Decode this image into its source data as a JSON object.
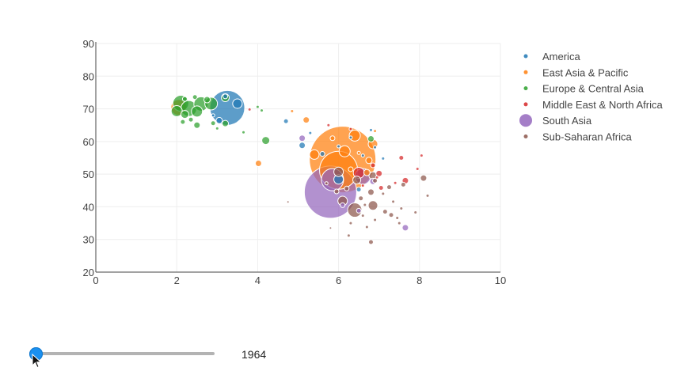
{
  "chart_data": {
    "type": "scatter",
    "variant": "bubble",
    "title": "",
    "xlabel": "",
    "ylabel": "",
    "xlim": [
      0,
      10
    ],
    "ylim": [
      20,
      90
    ],
    "x_ticks": [
      "0",
      "2",
      "4",
      "6",
      "8",
      "10"
    ],
    "y_ticks": [
      "20",
      "30",
      "40",
      "50",
      "60",
      "70",
      "80",
      "90"
    ],
    "grid": true,
    "legend_position": "right",
    "legend": [
      {
        "name": "America",
        "color": "#1f77b4"
      },
      {
        "name": "East Asia & Pacific",
        "color": "#ff7f0e"
      },
      {
        "name": "Europe & Central Asia",
        "color": "#2ca02c"
      },
      {
        "name": "Middle East & North Africa",
        "color": "#d62728"
      },
      {
        "name": "South Asia",
        "color": "#9467bd"
      },
      {
        "name": "Sub-Saharan Africa",
        "color": "#8c564b"
      }
    ],
    "series": [
      {
        "name": "America",
        "color": "#1f77b4",
        "points": [
          {
            "x": 3.25,
            "y": 70.3,
            "s": 22
          },
          {
            "x": 3.5,
            "y": 71.6,
            "s": 6
          },
          {
            "x": 3.05,
            "y": 66.4,
            "s": 4
          },
          {
            "x": 3.2,
            "y": 73.8,
            "s": 3
          },
          {
            "x": 2.9,
            "y": 68.0,
            "s": 2
          },
          {
            "x": 5.1,
            "y": 58.8,
            "s": 4
          },
          {
            "x": 4.7,
            "y": 66.2,
            "s": 3
          },
          {
            "x": 6.0,
            "y": 48.4,
            "s": 6
          },
          {
            "x": 6.5,
            "y": 45.3,
            "s": 3
          },
          {
            "x": 5.6,
            "y": 56.2,
            "s": 3
          },
          {
            "x": 6.8,
            "y": 63.5,
            "s": 2
          },
          {
            "x": 6.3,
            "y": 61.2,
            "s": 2
          },
          {
            "x": 6.0,
            "y": 58.5,
            "s": 2
          },
          {
            "x": 7.1,
            "y": 54.8,
            "s": 2
          },
          {
            "x": 6.6,
            "y": 55.7,
            "s": 2
          },
          {
            "x": 5.3,
            "y": 62.6,
            "s": 2
          },
          {
            "x": 6.9,
            "y": 58.2,
            "s": 2
          }
        ]
      },
      {
        "name": "East Asia & Pacific",
        "color": "#ff7f0e",
        "points": [
          {
            "x": 6.1,
            "y": 54.5,
            "s": 42
          },
          {
            "x": 6.0,
            "y": 51.2,
            "s": 24
          },
          {
            "x": 2.05,
            "y": 70.4,
            "s": 10
          },
          {
            "x": 4.02,
            "y": 53.3,
            "s": 4
          },
          {
            "x": 5.2,
            "y": 66.6,
            "s": 4
          },
          {
            "x": 6.4,
            "y": 61.8,
            "s": 7
          },
          {
            "x": 6.85,
            "y": 59.2,
            "s": 6
          },
          {
            "x": 5.4,
            "y": 56.0,
            "s": 6
          },
          {
            "x": 6.15,
            "y": 57.0,
            "s": 7
          },
          {
            "x": 4.85,
            "y": 69.3,
            "s": 2
          },
          {
            "x": 6.7,
            "y": 50.5,
            "s": 4
          },
          {
            "x": 6.75,
            "y": 54.2,
            "s": 4
          },
          {
            "x": 6.3,
            "y": 51.5,
            "s": 3
          },
          {
            "x": 5.85,
            "y": 61.0,
            "s": 3
          },
          {
            "x": 6.5,
            "y": 56.5,
            "s": 2
          },
          {
            "x": 6.9,
            "y": 63.2,
            "s": 2
          }
        ]
      },
      {
        "name": "Europe & Central Asia",
        "color": "#2ca02c",
        "points": [
          {
            "x": 2.1,
            "y": 71.7,
            "s": 10
          },
          {
            "x": 2.3,
            "y": 70.1,
            "s": 10
          },
          {
            "x": 2.6,
            "y": 71.5,
            "s": 9
          },
          {
            "x": 2.85,
            "y": 71.6,
            "s": 8
          },
          {
            "x": 2.0,
            "y": 69.3,
            "s": 7
          },
          {
            "x": 2.5,
            "y": 69.2,
            "s": 7
          },
          {
            "x": 2.2,
            "y": 68.3,
            "s": 5
          },
          {
            "x": 2.75,
            "y": 72.8,
            "s": 4
          },
          {
            "x": 3.2,
            "y": 73.4,
            "s": 5
          },
          {
            "x": 3.2,
            "y": 65.5,
            "s": 4
          },
          {
            "x": 4.2,
            "y": 60.3,
            "s": 5
          },
          {
            "x": 2.5,
            "y": 65.0,
            "s": 4
          },
          {
            "x": 2.9,
            "y": 65.6,
            "s": 3
          },
          {
            "x": 2.45,
            "y": 73.6,
            "s": 3
          },
          {
            "x": 3.65,
            "y": 62.8,
            "s": 2
          },
          {
            "x": 4.0,
            "y": 70.6,
            "s": 2
          },
          {
            "x": 4.1,
            "y": 69.5,
            "s": 2
          },
          {
            "x": 6.8,
            "y": 60.8,
            "s": 4
          },
          {
            "x": 2.35,
            "y": 66.7,
            "s": 3
          },
          {
            "x": 3.0,
            "y": 64.0,
            "s": 2
          },
          {
            "x": 2.2,
            "y": 73.0,
            "s": 3
          },
          {
            "x": 2.15,
            "y": 66.0,
            "s": 3
          }
        ]
      },
      {
        "name": "Middle East & North Africa",
        "color": "#d62728",
        "points": [
          {
            "x": 6.5,
            "y": 50.4,
            "s": 7
          },
          {
            "x": 7.65,
            "y": 48.0,
            "s": 4
          },
          {
            "x": 7.0,
            "y": 50.2,
            "s": 4
          },
          {
            "x": 6.85,
            "y": 52.7,
            "s": 3
          },
          {
            "x": 7.05,
            "y": 45.8,
            "s": 3
          },
          {
            "x": 7.4,
            "y": 47.3,
            "s": 2
          },
          {
            "x": 7.55,
            "y": 55.0,
            "s": 3
          },
          {
            "x": 3.8,
            "y": 69.8,
            "s": 2
          },
          {
            "x": 5.75,
            "y": 65.0,
            "s": 2
          },
          {
            "x": 6.3,
            "y": 63.8,
            "s": 2
          },
          {
            "x": 7.95,
            "y": 51.6,
            "s": 2
          },
          {
            "x": 8.05,
            "y": 55.7,
            "s": 2
          },
          {
            "x": 6.95,
            "y": 49.0,
            "s": 2
          },
          {
            "x": 6.6,
            "y": 46.5,
            "s": 2
          }
        ]
      },
      {
        "name": "South Asia",
        "color": "#9467bd",
        "points": [
          {
            "x": 5.8,
            "y": 44.5,
            "s": 33
          },
          {
            "x": 5.85,
            "y": 48.3,
            "s": 14
          },
          {
            "x": 6.6,
            "y": 49.3,
            "s": 10
          },
          {
            "x": 7.65,
            "y": 33.6,
            "s": 4
          },
          {
            "x": 5.1,
            "y": 61.0,
            "s": 4
          },
          {
            "x": 6.5,
            "y": 38.8,
            "s": 3
          },
          {
            "x": 6.1,
            "y": 40.5,
            "s": 3
          },
          {
            "x": 6.85,
            "y": 47.8,
            "s": 4
          }
        ]
      },
      {
        "name": "Sub-Saharan Africa",
        "color": "#8c564b",
        "points": [
          {
            "x": 6.4,
            "y": 39.0,
            "s": 9
          },
          {
            "x": 6.0,
            "y": 50.7,
            "s": 6
          },
          {
            "x": 6.1,
            "y": 41.8,
            "s": 6
          },
          {
            "x": 6.85,
            "y": 40.4,
            "s": 6
          },
          {
            "x": 6.45,
            "y": 48.2,
            "s": 5
          },
          {
            "x": 6.85,
            "y": 49.5,
            "s": 5
          },
          {
            "x": 6.8,
            "y": 44.5,
            "s": 4
          },
          {
            "x": 8.1,
            "y": 48.8,
            "s": 4
          },
          {
            "x": 7.3,
            "y": 37.5,
            "s": 3
          },
          {
            "x": 7.55,
            "y": 39.5,
            "s": 2
          },
          {
            "x": 6.9,
            "y": 48.0,
            "s": 3
          },
          {
            "x": 6.8,
            "y": 29.2,
            "s": 3
          },
          {
            "x": 7.5,
            "y": 35.0,
            "s": 2
          },
          {
            "x": 7.15,
            "y": 38.5,
            "s": 3
          },
          {
            "x": 6.25,
            "y": 31.2,
            "s": 2
          },
          {
            "x": 6.7,
            "y": 33.8,
            "s": 2
          },
          {
            "x": 6.9,
            "y": 36.0,
            "s": 2
          },
          {
            "x": 7.25,
            "y": 46.0,
            "s": 3
          },
          {
            "x": 7.6,
            "y": 46.8,
            "s": 3
          },
          {
            "x": 6.55,
            "y": 42.6,
            "s": 3
          },
          {
            "x": 7.1,
            "y": 44.0,
            "s": 2
          },
          {
            "x": 6.6,
            "y": 37.3,
            "s": 2
          },
          {
            "x": 8.2,
            "y": 43.4,
            "s": 2
          },
          {
            "x": 7.9,
            "y": 38.3,
            "s": 2
          },
          {
            "x": 5.95,
            "y": 44.7,
            "s": 3
          },
          {
            "x": 6.2,
            "y": 45.6,
            "s": 3
          },
          {
            "x": 7.35,
            "y": 41.6,
            "s": 2
          },
          {
            "x": 6.65,
            "y": 40.6,
            "s": 2
          },
          {
            "x": 5.7,
            "y": 47.2,
            "s": 2
          },
          {
            "x": 6.3,
            "y": 35.0,
            "s": 2
          },
          {
            "x": 7.45,
            "y": 36.6,
            "s": 2
          },
          {
            "x": 4.75,
            "y": 41.5,
            "s": 1.5
          },
          {
            "x": 5.8,
            "y": 33.5,
            "s": 1.5
          }
        ]
      }
    ]
  },
  "slider": {
    "value_label": "1964",
    "position_fraction": 0.0
  }
}
